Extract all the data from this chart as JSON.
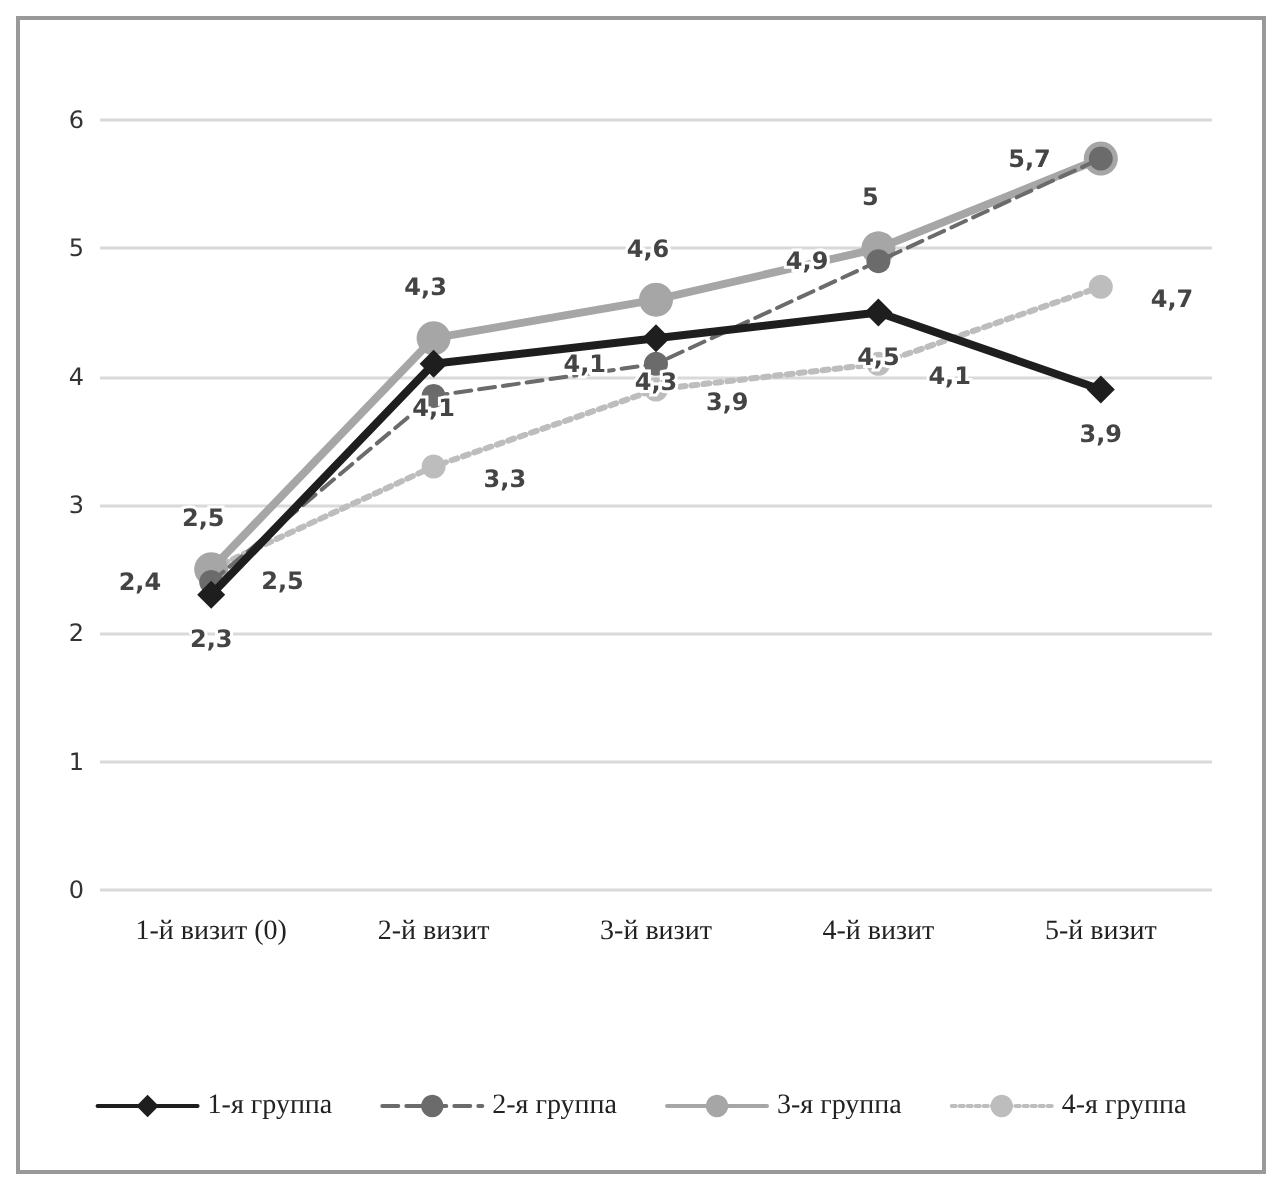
{
  "chart_data": {
    "type": "line",
    "categories": [
      "1-й визит (0)",
      "2-й визит",
      "3-й визит",
      "4-й визит",
      "5-й визит"
    ],
    "series": [
      {
        "name": "1-я группа",
        "color": "#1e1e1e",
        "marker": "diamond",
        "line_style": "solid",
        "values": [
          2.3,
          4.1,
          4.3,
          4.5,
          3.9
        ],
        "value_labels": [
          "2,3",
          "4,1",
          "4,3",
          "4,5",
          "3,9"
        ]
      },
      {
        "name": "2-я группа",
        "color": "#6b6b6b",
        "marker": "circle",
        "line_style": "dashed",
        "values": [
          2.4,
          3.85,
          4.1,
          4.9,
          5.7
        ],
        "value_labels": [
          "2,4",
          null,
          "4,1",
          "4,9",
          "5,7"
        ]
      },
      {
        "name": "3-я группа",
        "color": "#a6a6a6",
        "marker": "circle",
        "line_style": "solid",
        "values": [
          2.5,
          4.3,
          4.6,
          5,
          5.7
        ],
        "value_labels": [
          "2,5",
          "4,3",
          "4,6",
          "5",
          null
        ]
      },
      {
        "name": "4-я группа",
        "color": "#bdbdbd",
        "marker": "circle",
        "line_style": "dotted",
        "values": [
          2.5,
          3.3,
          3.9,
          4.1,
          4.7
        ],
        "value_labels": [
          "2,5",
          "3,3",
          "3,9",
          "4,1",
          "4,7"
        ]
      }
    ],
    "ylim": [
      0,
      6
    ],
    "yticks": [
      0,
      1,
      2,
      3,
      4,
      5,
      6
    ],
    "grid": "y",
    "legend": "bottom"
  }
}
